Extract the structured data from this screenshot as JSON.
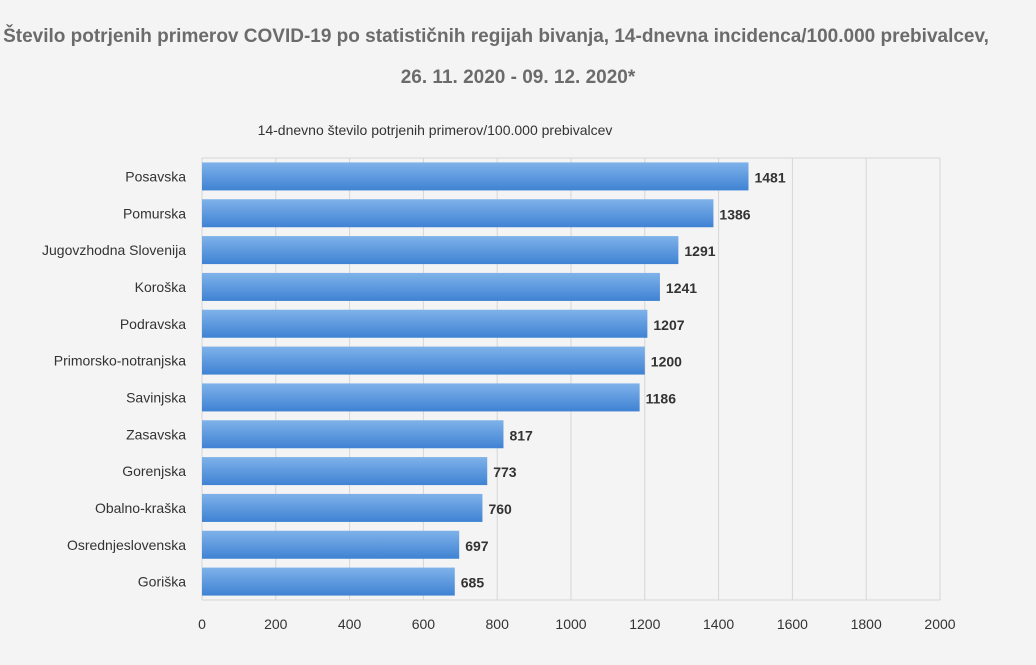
{
  "title": {
    "line1": "Število potrjenih primerov COVID-19 po statističnih regijah bivanja, 14-dnevna incidenca/100.000 prebivalcev,",
    "line2": "26. 11. 2020 - 09. 12. 2020*"
  },
  "colors": {
    "bar_top": "#7fb2ea",
    "bar_bottom": "#3f82d3",
    "grid": "#d6d6d6",
    "text": "#333333",
    "title": "#6b6b6b"
  },
  "chart_data": {
    "type": "bar",
    "orientation": "horizontal",
    "title": "14-dnevno število potrjenih primerov/100.000 prebivalcev",
    "categories": [
      "Posavska",
      "Pomurska",
      "Jugovzhodna Slovenija",
      "Koroška",
      "Podravska",
      "Primorsko-notranjska",
      "Savinjska",
      "Zasavska",
      "Gorenjska",
      "Obalno-kraška",
      "Osrednjeslovenska",
      "Goriška"
    ],
    "values": [
      1481,
      1386,
      1291,
      1241,
      1207,
      1200,
      1186,
      817,
      773,
      760,
      697,
      685
    ],
    "xlim": [
      0,
      2000
    ],
    "xticks": [
      "0",
      "200",
      "400",
      "600",
      "800",
      "1000",
      "1200",
      "1400",
      "1600",
      "1800",
      "2000"
    ],
    "grid": true,
    "data_labels": true
  }
}
